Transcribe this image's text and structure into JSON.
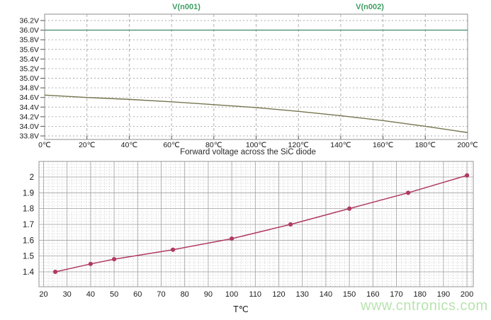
{
  "watermark": {
    "text": "www.cntronics.com",
    "color": "#b5e2ab"
  },
  "chart_data": [
    {
      "type": "line",
      "title": "",
      "legend": [
        {
          "label": "V(n001)",
          "color": "#3E9E63"
        },
        {
          "label": "V(n002)",
          "color": "#3E9E63"
        }
      ],
      "xlim": [
        0,
        200
      ],
      "ylim": [
        33.8,
        36.2
      ],
      "grid": true,
      "legend_position": "top",
      "x_tick_values": [
        0,
        20,
        40,
        60,
        80,
        100,
        120,
        140,
        160,
        180,
        200
      ],
      "x_tick_labels": [
        "0℃",
        "20℃",
        "40℃",
        "60℃",
        "80℃",
        "100℃",
        "120℃",
        "140℃",
        "160℃",
        "180℃",
        "200℃"
      ],
      "y_tick_values": [
        36.2,
        36.0,
        35.8,
        35.6,
        35.4,
        35.2,
        35.0,
        34.8,
        34.6,
        34.4,
        34.2,
        34.0,
        33.8
      ],
      "y_tick_labels": [
        "36.2V",
        "36.0V",
        "35.8V",
        "35.6V",
        "35.4V",
        "35.2V",
        "35.0V",
        "34.8V",
        "34.6V",
        "34.4V",
        "34.2V",
        "34.0V",
        "33.8V"
      ],
      "series": [
        {
          "name": "V(n001)",
          "color": "#4E9470",
          "markers": false,
          "x": [
            0,
            200
          ],
          "values": [
            36.0,
            36.0
          ]
        },
        {
          "name": "V(n002)",
          "color": "#75754F",
          "markers": false,
          "x": [
            0,
            20,
            40,
            60,
            80,
            100,
            120,
            140,
            160,
            180,
            200
          ],
          "values": [
            34.65,
            34.6,
            34.56,
            34.51,
            34.45,
            34.39,
            34.31,
            34.22,
            34.12,
            34.0,
            33.87
          ]
        }
      ]
    },
    {
      "type": "line",
      "title": "Forward voltage across the SiC diode",
      "xlabel": "T℃",
      "xlim": [
        18,
        203
      ],
      "ylim": [
        1.31,
        2.09
      ],
      "grid": true,
      "minor_grid": {
        "x_step": 2,
        "y_step": 0.02
      },
      "x_tick_values": [
        20,
        30,
        40,
        50,
        60,
        70,
        80,
        90,
        100,
        110,
        120,
        130,
        140,
        150,
        160,
        170,
        180,
        190,
        200
      ],
      "x_tick_labels": [
        "20",
        "30",
        "40",
        "50",
        "60",
        "70",
        "80",
        "90",
        "100",
        "110",
        "120",
        "130",
        "140",
        "150",
        "160",
        "170",
        "180",
        "190",
        "200"
      ],
      "y_tick_values": [
        2.0,
        1.9,
        1.8,
        1.7,
        1.6,
        1.5,
        1.4
      ],
      "y_tick_labels": [
        "2",
        "1.9",
        "1.8",
        "1.7",
        "1.6",
        "1.5",
        "1.4"
      ],
      "series": [
        {
          "name": "forward-voltage",
          "color": "#B03A62",
          "markers": true,
          "x": [
            25,
            40,
            50,
            75,
            100,
            125,
            150,
            175,
            200
          ],
          "values": [
            1.4,
            1.45,
            1.48,
            1.54,
            1.61,
            1.7,
            1.8,
            1.9,
            2.01
          ]
        }
      ]
    }
  ]
}
